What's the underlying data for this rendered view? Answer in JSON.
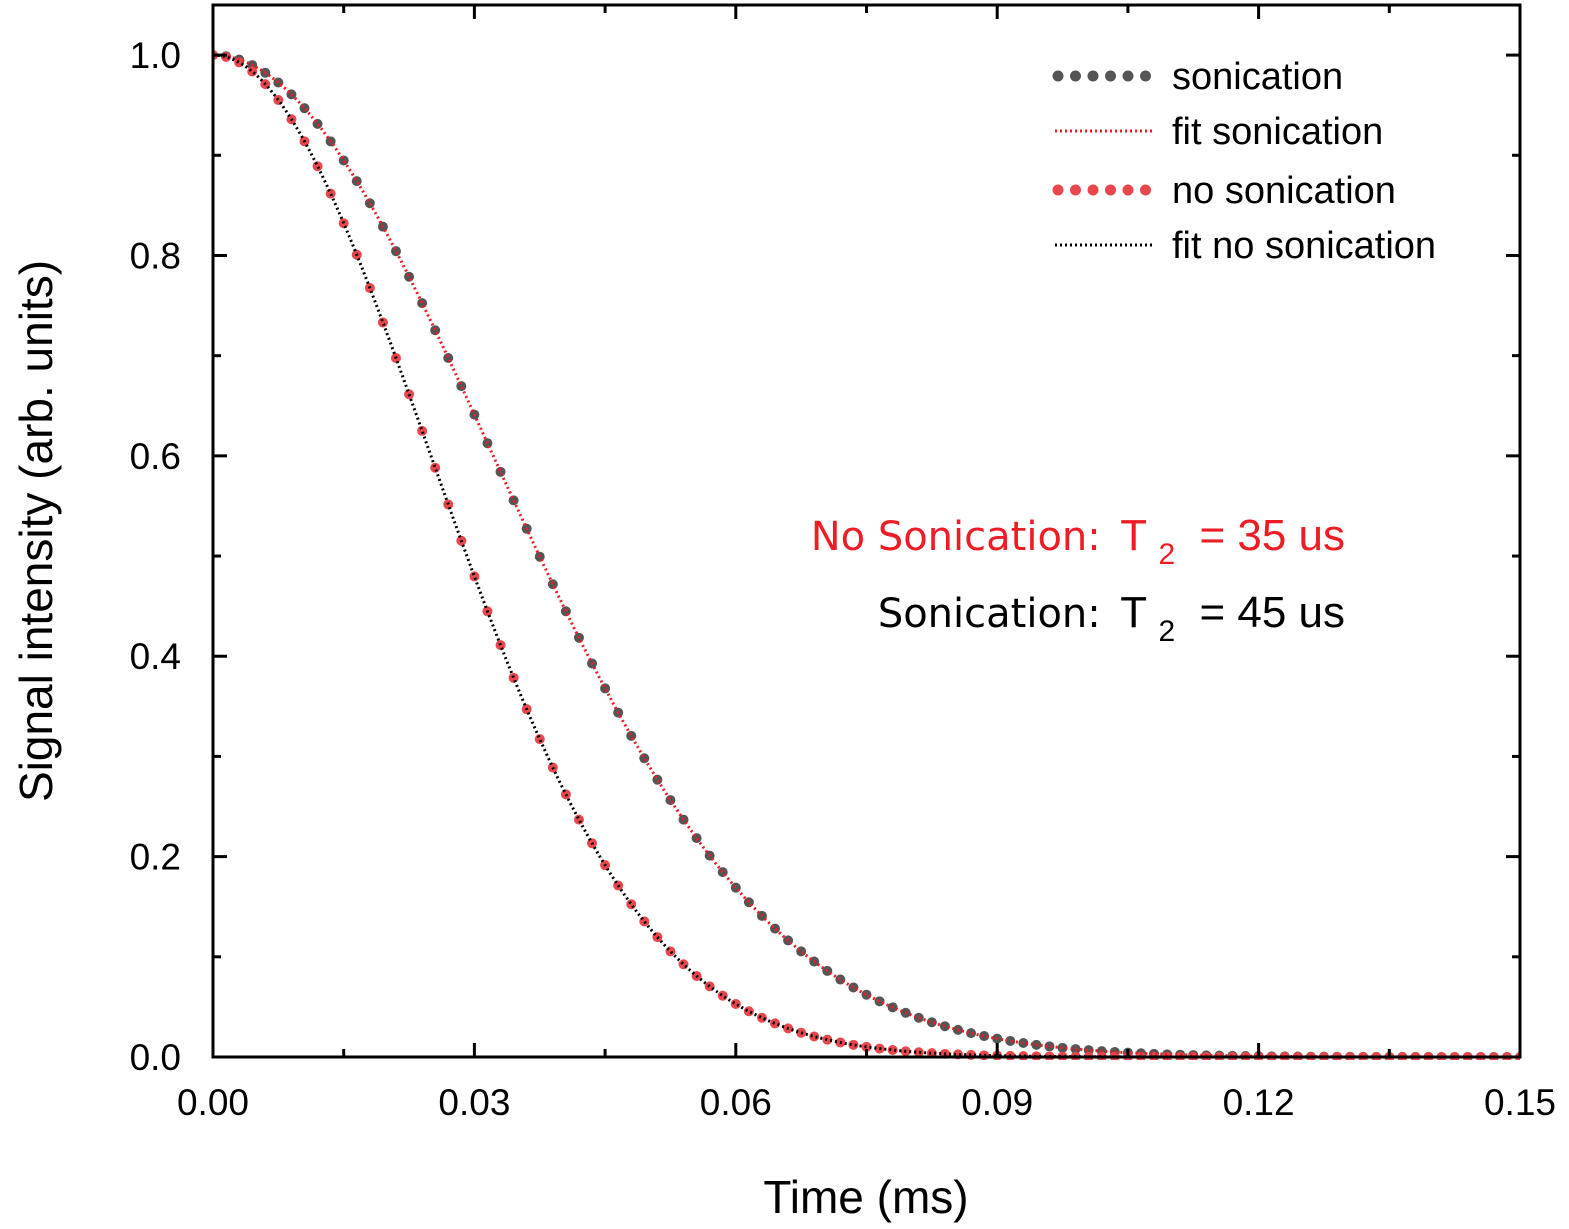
{
  "chart_data": {
    "type": "scatter",
    "title": "",
    "xlabel": "Time (ms)",
    "ylabel": "Signal intensity (arb. units)",
    "xlim": [
      0,
      0.15
    ],
    "ylim": [
      0,
      1.05
    ],
    "x_ticks": [
      "0.00",
      "0.03",
      "0.06",
      "0.09",
      "0.12",
      "0.15"
    ],
    "y_ticks": [
      "0.0",
      "0.2",
      "0.4",
      "0.6",
      "0.8",
      "1.0"
    ],
    "grid": false,
    "legend_position": "top-right",
    "series": [
      {
        "name": "sonication",
        "kind": "points",
        "color": "#555555",
        "model": "gaussian",
        "amplitude": 1.0,
        "tau_ms": 0.045,
        "x": [
          0.0,
          0.0015,
          0.003,
          0.0045,
          0.006,
          0.0075,
          0.009,
          0.0105,
          0.012,
          0.0135,
          0.015,
          0.0165,
          0.018,
          0.0195,
          0.021,
          0.0225,
          0.024,
          0.0255,
          0.027,
          0.0285,
          0.03,
          0.0315,
          0.033,
          0.0345,
          0.036,
          0.0375,
          0.039,
          0.0405,
          0.042,
          0.0435,
          0.045,
          0.0465,
          0.048,
          0.0495,
          0.051,
          0.0525,
          0.054,
          0.0555,
          0.057,
          0.0585,
          0.06,
          0.0615,
          0.063,
          0.0645,
          0.066,
          0.0675,
          0.069,
          0.0705,
          0.072,
          0.0735,
          0.075,
          0.0765,
          0.078,
          0.0795,
          0.081,
          0.0825,
          0.084,
          0.0855,
          0.087,
          0.0885,
          0.09,
          0.0915,
          0.093,
          0.0945,
          0.096,
          0.0975,
          0.099,
          0.1005,
          0.102,
          0.1035,
          0.105,
          0.1065,
          0.108,
          0.1095,
          0.111,
          0.1125,
          0.114,
          0.1155,
          0.117,
          0.1185,
          0.12,
          0.1215,
          0.123,
          0.1245,
          0.126,
          0.1275,
          0.129,
          0.1305,
          0.132,
          0.1335,
          0.135,
          0.1365,
          0.138,
          0.1395,
          0.141,
          0.1425,
          0.144,
          0.1455,
          0.147,
          0.1485,
          0.15
        ]
      },
      {
        "name": "fit sonication",
        "kind": "line",
        "color": "#ee1c25",
        "model": "gaussian",
        "amplitude": 1.0,
        "tau_ms": 0.045
      },
      {
        "name": "no sonication",
        "kind": "points",
        "color": "#e8474b",
        "model": "gaussian",
        "amplitude": 1.0,
        "tau_ms": 0.035,
        "x": [
          0.0,
          0.0015,
          0.003,
          0.0045,
          0.006,
          0.0075,
          0.009,
          0.0105,
          0.012,
          0.0135,
          0.015,
          0.0165,
          0.018,
          0.0195,
          0.021,
          0.0225,
          0.024,
          0.0255,
          0.027,
          0.0285,
          0.03,
          0.0315,
          0.033,
          0.0345,
          0.036,
          0.0375,
          0.039,
          0.0405,
          0.042,
          0.0435,
          0.045,
          0.0465,
          0.048,
          0.0495,
          0.051,
          0.0525,
          0.054,
          0.0555,
          0.057,
          0.0585,
          0.06,
          0.0615,
          0.063,
          0.0645,
          0.066,
          0.0675,
          0.069,
          0.0705,
          0.072,
          0.0735,
          0.075,
          0.0765,
          0.078,
          0.0795,
          0.081,
          0.0825,
          0.084,
          0.0855,
          0.087,
          0.0885,
          0.09,
          0.0915,
          0.093,
          0.0945,
          0.096,
          0.0975,
          0.099,
          0.1005,
          0.102,
          0.1035,
          0.105,
          0.1065,
          0.108,
          0.1095,
          0.111,
          0.1125,
          0.114,
          0.1155,
          0.117,
          0.1185,
          0.12,
          0.1215,
          0.123,
          0.1245,
          0.126,
          0.1275,
          0.129,
          0.1305,
          0.132,
          0.1335,
          0.135,
          0.1365,
          0.138,
          0.1395,
          0.141,
          0.1425,
          0.144,
          0.1455,
          0.147,
          0.1485,
          0.15
        ]
      },
      {
        "name": "fit no sonication",
        "kind": "line",
        "color": "#000000",
        "model": "gaussian",
        "amplitude": 1.0,
        "tau_ms": 0.035
      }
    ],
    "annotations": [
      {
        "label": "No Sonication:",
        "symbol": "T",
        "subscript": "2",
        "value_text": "= 35 us",
        "color": "#ee1c25"
      },
      {
        "label": "Sonication:",
        "symbol": "T",
        "subscript": "2",
        "value_text": "= 45 us",
        "color": "#000000"
      }
    ]
  }
}
